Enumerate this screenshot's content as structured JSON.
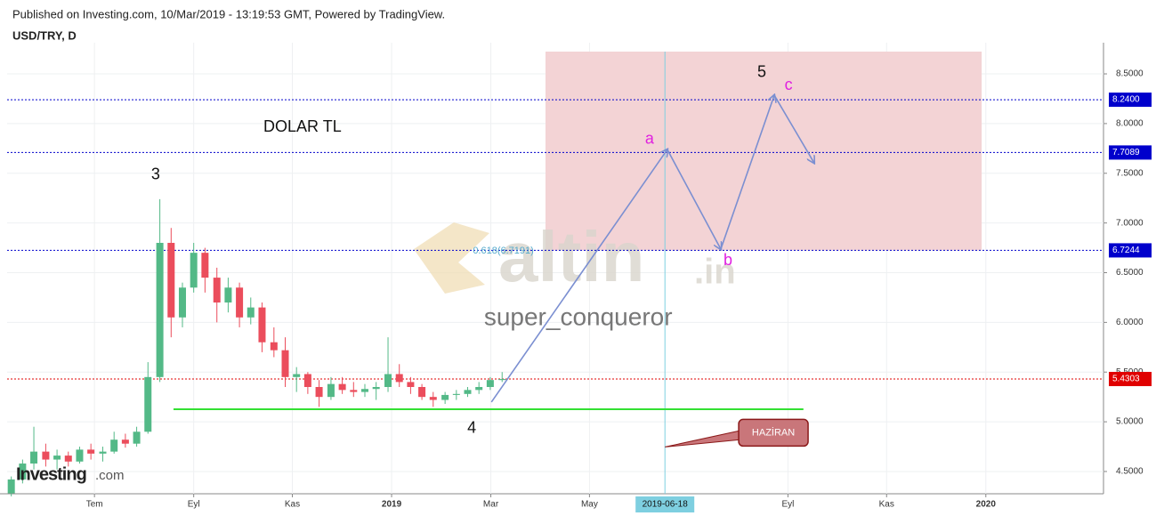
{
  "header": {
    "published": "Published on Investing.com, 10/Mar/2019 - 13:19:53 GMT, Powered by TradingView.",
    "symbol": "USD/TRY, D"
  },
  "chart_data": {
    "type": "candlestick",
    "up_color": "#53b987",
    "down_color": "#eb4d5c",
    "xlim": [
      2018.353,
      2020.198
    ],
    "ylim": [
      4.276,
      8.724
    ],
    "grid": true,
    "xticks": [
      {
        "value": 2018.5,
        "label": "Tem"
      },
      {
        "value": 2018.667,
        "label": "Eyl"
      },
      {
        "value": 2018.833,
        "label": "Kas"
      },
      2019,
      {
        "value": 2019.167,
        "label": "Mar"
      },
      {
        "value": 2019.333,
        "label": "May"
      },
      {
        "value": 2019.667,
        "label": "Eyl"
      },
      {
        "value": 2019.833,
        "label": "Kas"
      },
      2020
    ],
    "yticks": [
      {
        "value": 4.5,
        "label": "4.5000"
      },
      {
        "value": 5,
        "label": "5.0000"
      },
      {
        "value": 5.5,
        "label": "5.5000"
      },
      {
        "value": 6,
        "label": "6.0000"
      },
      {
        "value": 6.5,
        "label": "6.5000"
      },
      {
        "value": 7,
        "label": "7.0000"
      },
      {
        "value": 7.5,
        "label": "7.5000"
      },
      {
        "value": 8,
        "label": "8.0000"
      },
      {
        "value": 8.5,
        "label": "8.5000"
      }
    ],
    "x": [
      2018.36,
      2018.379,
      2018.398,
      2018.418,
      2018.437,
      2018.456,
      2018.475,
      2018.494,
      2018.514,
      2018.533,
      2018.552,
      2018.571,
      2018.59,
      2018.61,
      2018.629,
      2018.648,
      2018.667,
      2018.686,
      2018.706,
      2018.725,
      2018.744,
      2018.763,
      2018.782,
      2018.802,
      2018.821,
      2018.84,
      2018.859,
      2018.878,
      2018.898,
      2018.917,
      2018.936,
      2018.955,
      2018.974,
      2018.994,
      2019.013,
      2019.032,
      2019.051,
      2019.07,
      2019.09,
      2019.109,
      2019.128,
      2019.147,
      2019.166,
      2019.186
    ],
    "open": [
      4.28,
      4.42,
      4.58,
      4.7,
      4.62,
      4.66,
      4.6,
      4.72,
      4.68,
      4.7,
      4.82,
      4.78,
      4.9,
      5.45,
      6.8,
      6.05,
      6.35,
      6.7,
      6.45,
      6.2,
      6.35,
      6.05,
      6.15,
      5.8,
      5.72,
      5.45,
      5.48,
      5.35,
      5.25,
      5.38,
      5.32,
      5.3,
      5.33,
      5.35,
      5.48,
      5.4,
      5.35,
      5.25,
      5.22,
      5.27,
      5.28,
      5.32,
      5.35,
      5.42
    ],
    "high": [
      4.45,
      4.62,
      4.95,
      4.78,
      4.72,
      4.7,
      4.75,
      4.78,
      4.75,
      4.9,
      4.88,
      4.95,
      5.6,
      7.24,
      6.95,
      6.4,
      6.8,
      6.75,
      6.55,
      6.45,
      6.4,
      6.25,
      6.2,
      5.95,
      5.85,
      5.55,
      5.5,
      5.42,
      5.45,
      5.45,
      5.4,
      5.38,
      5.4,
      5.85,
      5.58,
      5.45,
      5.38,
      5.3,
      5.3,
      5.32,
      5.35,
      5.4,
      5.45,
      5.5
    ],
    "low": [
      4.25,
      4.38,
      4.52,
      4.55,
      4.52,
      4.55,
      4.58,
      4.62,
      4.6,
      4.68,
      4.74,
      4.75,
      4.88,
      5.4,
      5.85,
      5.95,
      6.3,
      6.3,
      6.0,
      6.1,
      5.95,
      5.98,
      5.7,
      5.65,
      5.35,
      5.3,
      5.28,
      5.15,
      5.22,
      5.28,
      5.25,
      5.25,
      5.22,
      5.3,
      5.35,
      5.28,
      5.22,
      5.15,
      5.18,
      5.22,
      5.25,
      5.28,
      5.32,
      5.4
    ],
    "close": [
      4.42,
      4.58,
      4.7,
      4.62,
      4.66,
      4.6,
      4.72,
      4.68,
      4.7,
      4.82,
      4.78,
      4.9,
      5.45,
      6.8,
      6.05,
      6.35,
      6.7,
      6.45,
      6.2,
      6.35,
      6.05,
      6.15,
      5.8,
      5.72,
      5.45,
      5.48,
      5.35,
      5.25,
      5.38,
      5.32,
      5.3,
      5.33,
      5.35,
      5.48,
      5.4,
      5.35,
      5.25,
      5.22,
      5.27,
      5.28,
      5.32,
      5.35,
      5.42,
      5.43
    ],
    "hlines": [
      {
        "value": 8.24,
        "label": "8.2400",
        "color": "#0000cc"
      },
      {
        "value": 7.7089,
        "label": "7.7089",
        "color": "#0000cc"
      },
      {
        "value": 6.7244,
        "label": "6.7244",
        "color": "#0000cc"
      },
      {
        "value": 5.4303,
        "label": "5.4303",
        "color": "#e00000"
      }
    ],
    "crosshair": {
      "value": 2019.46,
      "label": "2019-06-18",
      "color": "#7ecfe0"
    },
    "zone": {
      "x": [
        2019.259,
        2019.993
      ],
      "y": [
        6.7244,
        8.724
      ],
      "color": "#f3d3d5"
    },
    "support": {
      "x": [
        2018.633,
        2019.693
      ],
      "y": [
        5.126,
        5.126
      ],
      "color": "#33e033"
    },
    "arrows": {
      "x": [
        2019.168,
        2019.464,
        2019.554,
        2019.644,
        2019.711
      ],
      "y": [
        5.198,
        7.739,
        6.737,
        8.285,
        7.605
      ],
      "color": "#7b8fd1"
    },
    "annotations": [
      {
        "text": "3",
        "x": 2018.603,
        "y": 7.48,
        "color": "#111111",
        "size": 18
      },
      {
        "text": "4",
        "x": 2019.135,
        "y": 4.93,
        "color": "#111111",
        "size": 18
      },
      {
        "text": "5",
        "x": 2019.623,
        "y": 8.51,
        "color": "#111111",
        "size": 18
      },
      {
        "text": "a",
        "x": 2019.434,
        "y": 7.84,
        "color": "#e020e0",
        "size": 18
      },
      {
        "text": "b",
        "x": 2019.566,
        "y": 6.62,
        "color": "#e020e0",
        "size": 18
      },
      {
        "text": "c",
        "x": 2019.668,
        "y": 8.38,
        "color": "#e020e0",
        "size": 18
      },
      {
        "text": "DOLAR TL",
        "x": 2018.85,
        "y": 7.96,
        "color": "#111111",
        "size": 18
      },
      {
        "text": "super_conqueror",
        "x": 2019.314,
        "y": 6.04,
        "color": "#777777",
        "size": 28
      },
      {
        "text": "0.618(6.7191)",
        "x": 2019.188,
        "y": 6.72,
        "color": "#55aacc",
        "size": 11
      }
    ],
    "callout": {
      "text": "HAZİRAN",
      "x": 2019.644,
      "y": 4.89
    },
    "watermark": [
      "altin",
      ".in"
    ],
    "logo": [
      "Investing",
      ".com"
    ]
  }
}
